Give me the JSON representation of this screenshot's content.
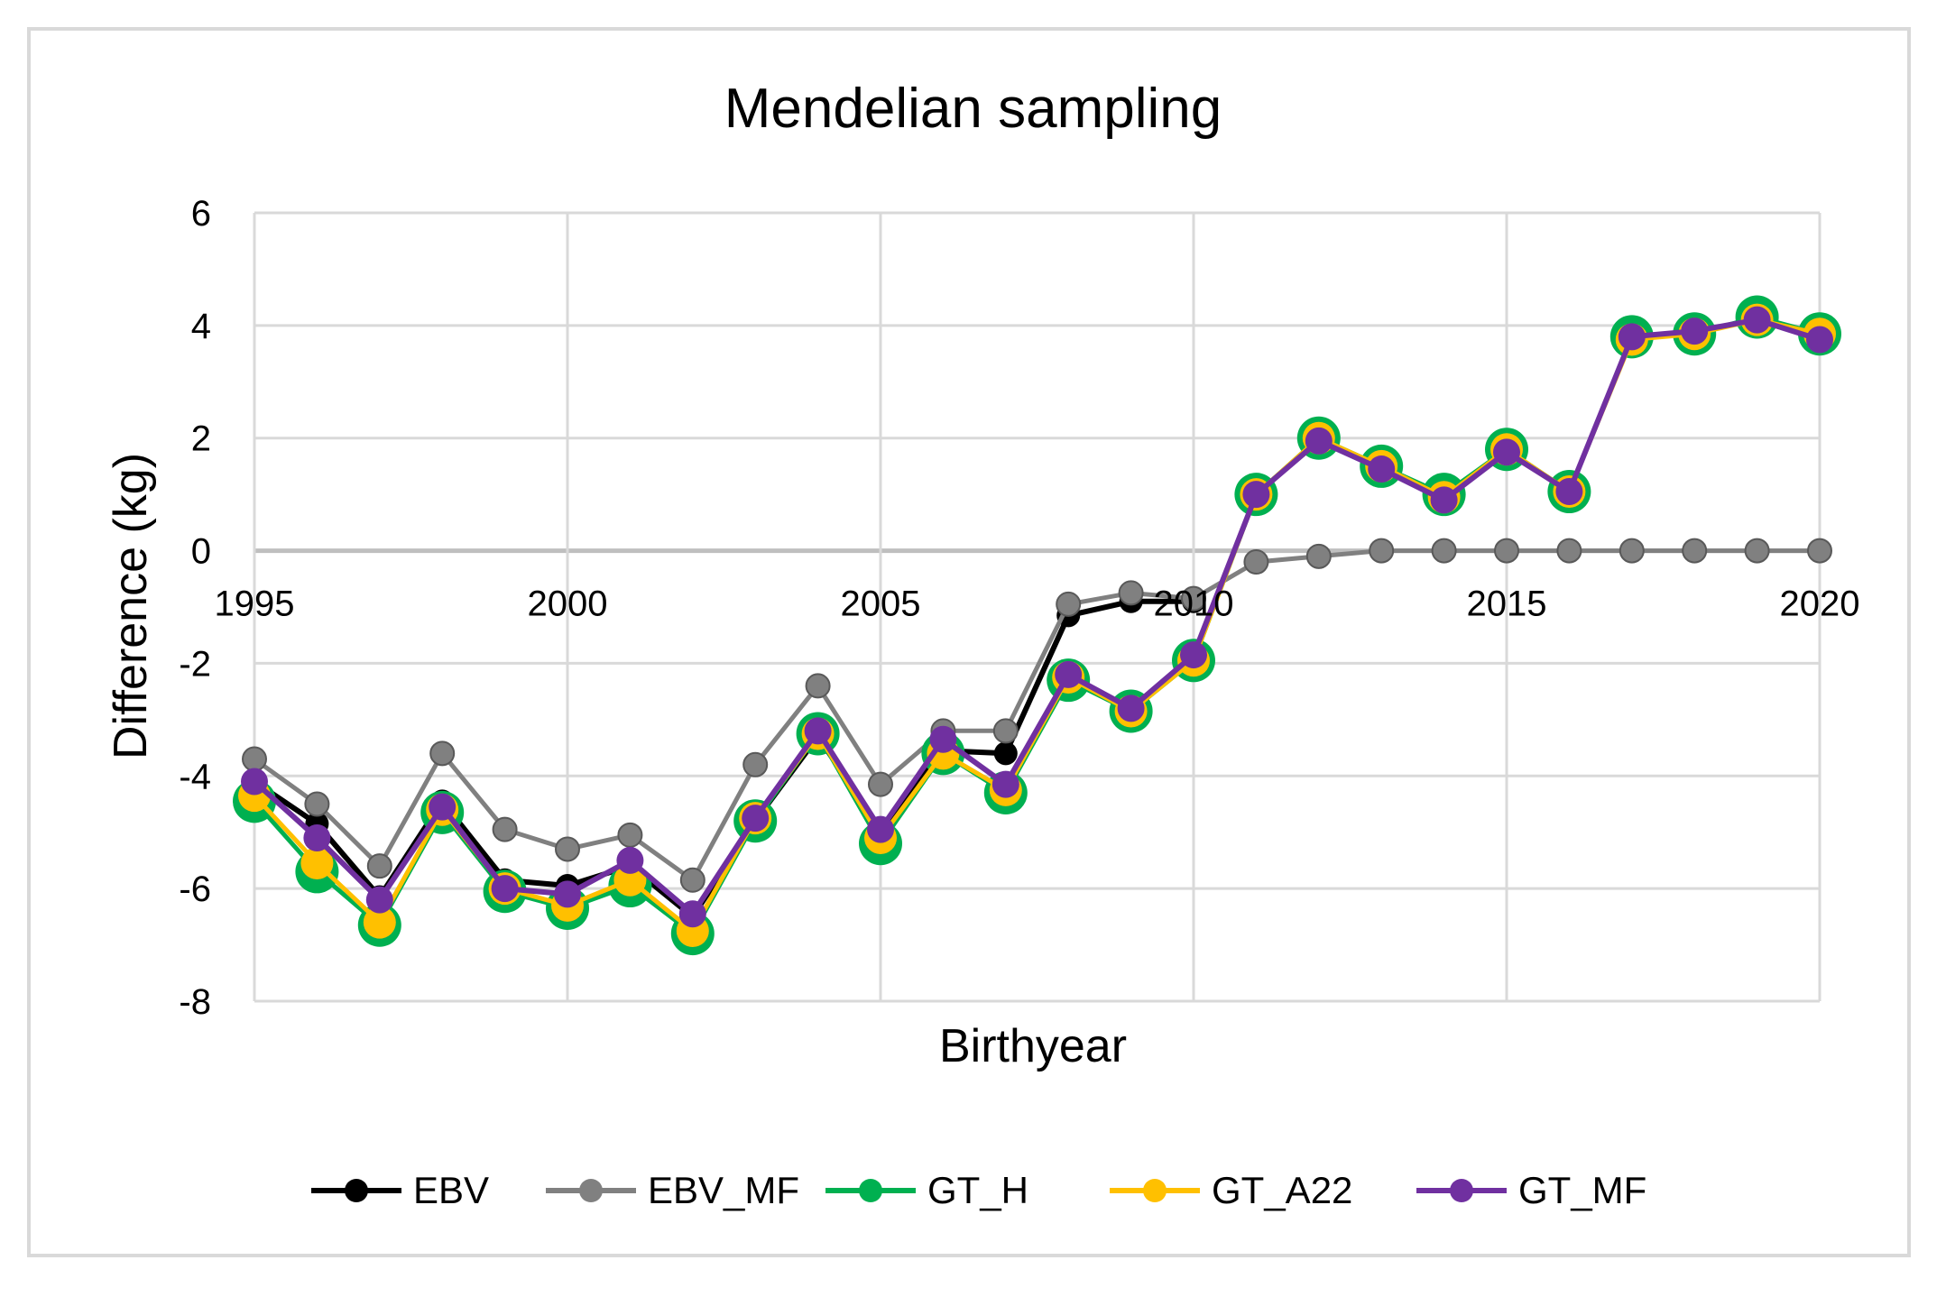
{
  "chart_data": {
    "type": "line",
    "title": "Mendelian sampling",
    "xlabel": "Birthyear",
    "ylabel": "Difference (kg)",
    "xlim": [
      1995,
      2020
    ],
    "ylim": [
      -8,
      6
    ],
    "x_ticks": [
      "1995",
      "2000",
      "2005",
      "2010",
      "2015",
      "2020"
    ],
    "y_ticks": [
      "6",
      "4",
      "2",
      "0",
      "-2",
      "-4",
      "-6",
      "-8"
    ],
    "grid": true,
    "legend_position": "bottom",
    "x": [
      1995,
      1996,
      1997,
      1998,
      1999,
      2000,
      2001,
      2002,
      2003,
      2004,
      2005,
      2006,
      2007,
      2008,
      2009,
      2010,
      2011,
      2012,
      2013,
      2014,
      2015,
      2016,
      2017,
      2018,
      2019,
      2020
    ],
    "series": [
      {
        "name": "EBV",
        "color": "#000000",
        "values": [
          -4.1,
          -4.85,
          -6.15,
          -4.45,
          -5.85,
          -5.95,
          -5.6,
          -6.5,
          -4.8,
          -3.3,
          -4.95,
          -3.55,
          -3.6,
          -1.15,
          -0.9,
          -0.9,
          null,
          null,
          null,
          null,
          null,
          null,
          null,
          null,
          null,
          null
        ]
      },
      {
        "name": "EBV_MF",
        "color": "#808080",
        "values": [
          -3.7,
          -4.5,
          -5.6,
          -3.6,
          -4.95,
          -5.3,
          -5.05,
          -5.85,
          -3.8,
          -2.4,
          -4.15,
          -3.2,
          -3.2,
          -0.95,
          -0.75,
          -0.85,
          -0.2,
          -0.1,
          0.0,
          0.0,
          0.0,
          0.0,
          0.0,
          0.0,
          0.0,
          0.0
        ]
      },
      {
        "name": "GT_H",
        "color": "#00b050",
        "values": [
          -4.45,
          -5.7,
          -6.65,
          -4.65,
          -6.05,
          -6.35,
          -5.95,
          -6.8,
          -4.8,
          -3.25,
          -5.2,
          -3.6,
          -4.3,
          -2.3,
          -2.85,
          -1.95,
          1.0,
          2.0,
          1.5,
          1.0,
          1.8,
          1.05,
          3.8,
          3.85,
          4.15,
          3.85
        ]
      },
      {
        "name": "GT_A22",
        "color": "#ffc000",
        "values": [
          -4.35,
          -5.55,
          -6.6,
          -4.6,
          -6.0,
          -6.3,
          -5.85,
          -6.75,
          -4.75,
          -3.25,
          -5.1,
          -3.6,
          -4.25,
          -2.25,
          -2.85,
          -1.95,
          1.0,
          2.0,
          1.5,
          0.95,
          1.8,
          1.05,
          3.75,
          3.85,
          4.1,
          3.85
        ]
      },
      {
        "name": "GT_MF",
        "color": "#7030a0",
        "values": [
          -4.1,
          -5.1,
          -6.2,
          -4.55,
          -6.0,
          -6.1,
          -5.5,
          -6.45,
          -4.75,
          -3.2,
          -4.95,
          -3.35,
          -4.15,
          -2.2,
          -2.8,
          -1.85,
          1.0,
          1.95,
          1.45,
          0.9,
          1.75,
          1.05,
          3.8,
          3.9,
          4.1,
          3.75
        ]
      }
    ]
  }
}
